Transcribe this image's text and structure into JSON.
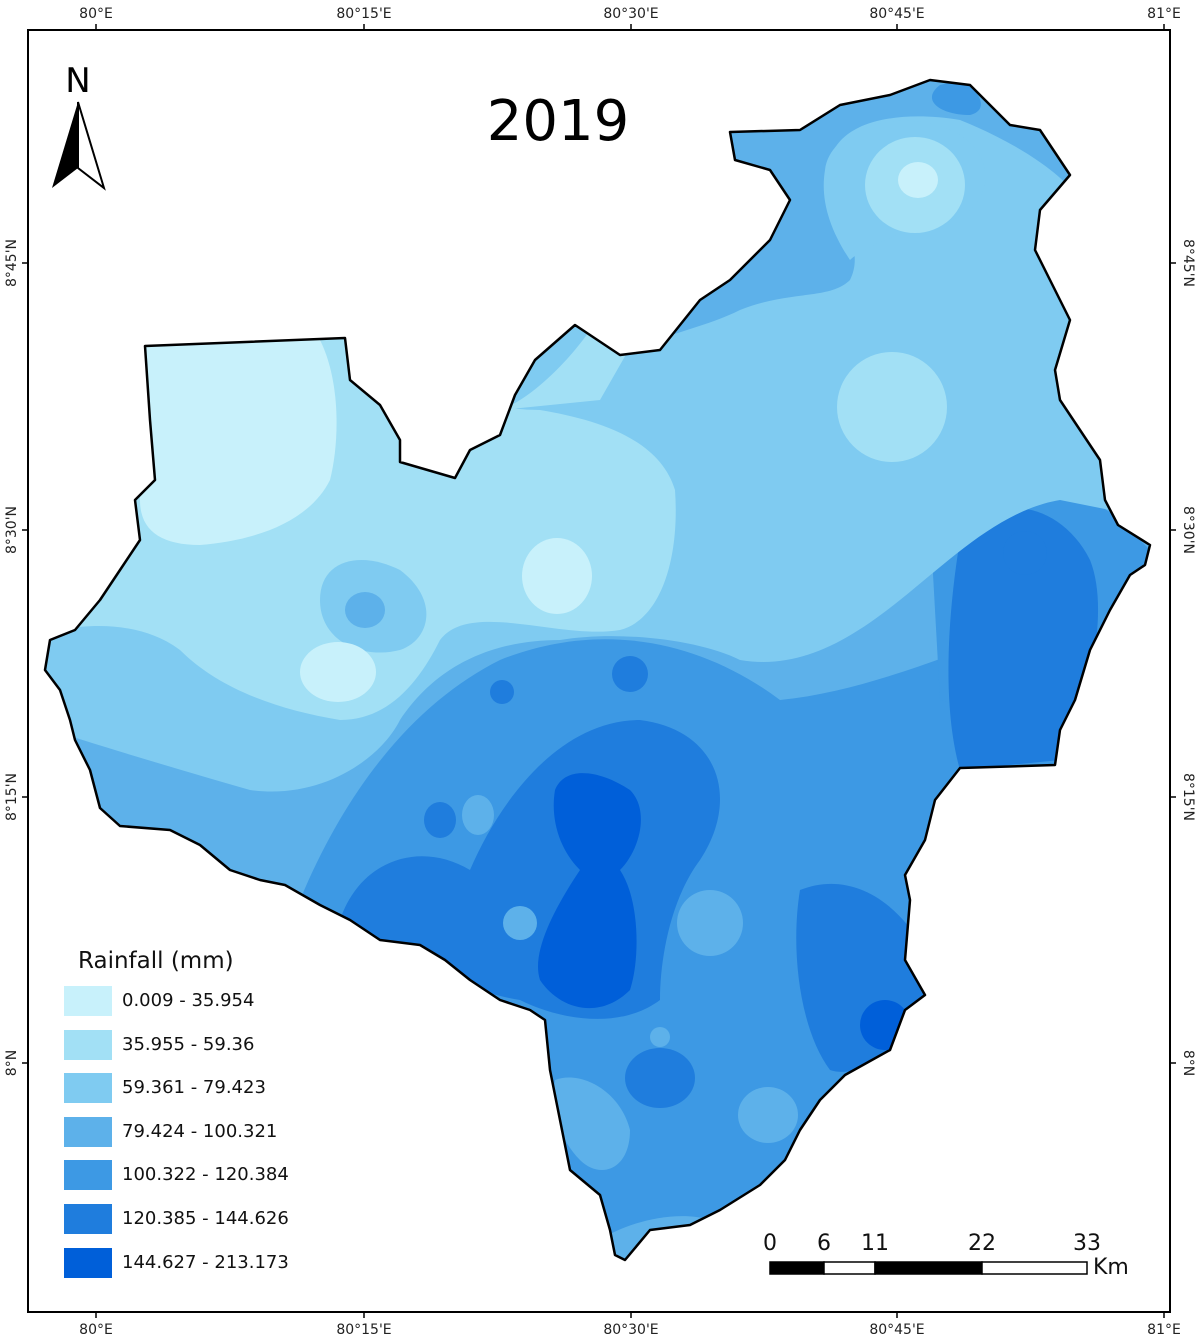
{
  "map": {
    "title": "2019",
    "north_label": "N",
    "colors": {
      "class1": "#c8f1fb",
      "class2": "#a2e0f5",
      "class3": "#7fcbf1",
      "class4": "#5db1ea",
      "class5": "#3d99e4",
      "class6": "#1f7ddd",
      "class7": "#005fd9",
      "outline": "#000000"
    },
    "legend": {
      "title": "Rainfall (mm)",
      "items": [
        {
          "label": "0.009 - 35.954",
          "color": "#c8f1fb"
        },
        {
          "label": "35.955 - 59.36",
          "color": "#a2e0f5"
        },
        {
          "label": "59.361 - 79.423",
          "color": "#7fcbf1"
        },
        {
          "label": "79.424 - 100.321",
          "color": "#5db1ea"
        },
        {
          "label": "100.322 - 120.384",
          "color": "#3d99e4"
        },
        {
          "label": "120.385 - 144.626",
          "color": "#1f7ddd"
        },
        {
          "label": "144.627 - 213.173",
          "color": "#005fd9"
        }
      ]
    },
    "scale_bar": {
      "labels": [
        "0",
        "6",
        "11",
        "22",
        "33"
      ],
      "unit": "Km"
    },
    "lon_labels": [
      "80°E",
      "80°15'E",
      "80°30'E",
      "80°45'E",
      "81°E"
    ],
    "lat_labels": [
      "8°45'N",
      "8°30'N",
      "8°15'N",
      "8°N"
    ]
  }
}
